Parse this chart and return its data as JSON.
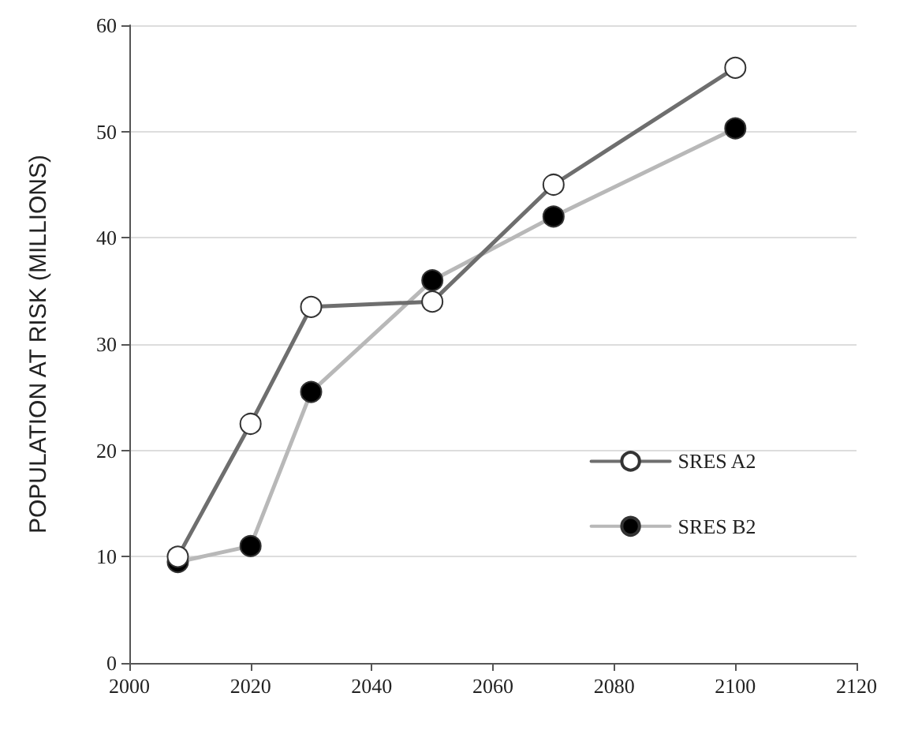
{
  "chart_data": {
    "type": "line",
    "ylabel": "POPULATION AT RISK (MILLIONS)",
    "x": [
      2008,
      2020,
      2030,
      2050,
      2070,
      2100
    ],
    "series": [
      {
        "name": "SRES A2",
        "color": "#6e6e6e",
        "values": [
          10,
          22.5,
          33.5,
          34,
          45,
          56
        ]
      },
      {
        "name": "SRES B2",
        "color": "#b8b8b8",
        "values": [
          9.5,
          11,
          25.5,
          36,
          42,
          50.3
        ]
      }
    ],
    "xlim": [
      2000,
      2120
    ],
    "xticks": [
      2000,
      2020,
      2040,
      2060,
      2080,
      2100,
      2120
    ],
    "ylim": [
      0,
      60
    ],
    "yticks": [
      0,
      10,
      20,
      30,
      40,
      50,
      60
    ],
    "grid": "y",
    "legend": "bottom right",
    "marker": "circle",
    "line_style": "solid"
  }
}
